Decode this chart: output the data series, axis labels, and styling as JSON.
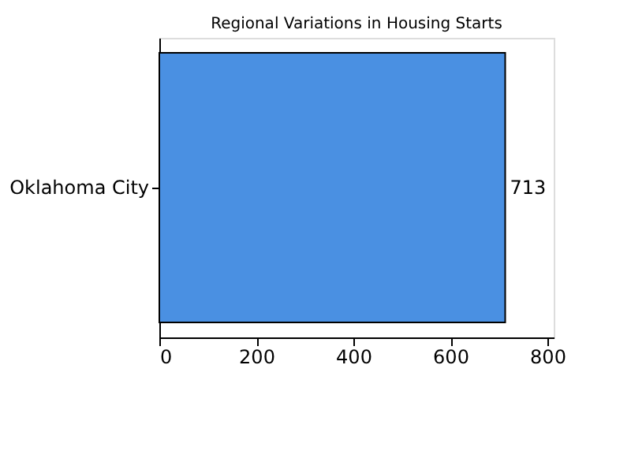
{
  "chart_data": {
    "type": "bar",
    "orientation": "horizontal",
    "title": "Regional Variations in Housing Starts",
    "categories": [
      "Oklahoma City"
    ],
    "values": [
      713
    ],
    "color": "#4a90e2",
    "xlim": [
      0,
      813
    ],
    "xticks": [
      0,
      200,
      400,
      600,
      800
    ],
    "grid": false,
    "data_labels": true
  }
}
